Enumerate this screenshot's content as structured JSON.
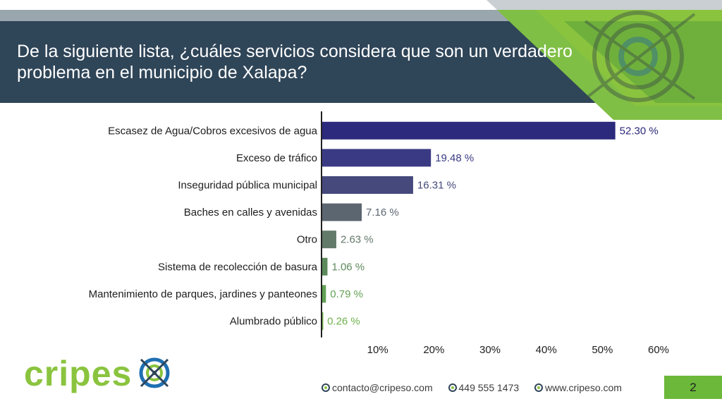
{
  "title": "De la siguiente lista, ¿cuáles servicios considera que son un verdadero problema en el municipio de Xalapa?",
  "colors": {
    "header": "#2f4558",
    "accent_green": "#6cb83a",
    "bar_palette": [
      "#2b2a7c",
      "#3a3a84",
      "#45497c",
      "#5c6670",
      "#63796a",
      "#5d8a5c",
      "#62a055",
      "#70b24e"
    ],
    "label_palette": [
      "#2b2a7c",
      "#3a3a84",
      "#45497c",
      "#5c6670",
      "#63796a",
      "#5d8a5c",
      "#62a055",
      "#70b24e"
    ]
  },
  "chart_data": {
    "type": "bar",
    "orientation": "horizontal",
    "categories": [
      "Escasez de Agua/Cobros excesivos de agua",
      "Exceso de tráfico",
      "Inseguridad pública municipal",
      "Baches en calles y avenidas",
      "Otro",
      "Sistema de recolección de basura",
      "Mantenimiento de parques, jardines y panteones",
      "Alumbrado público"
    ],
    "values": [
      52.3,
      19.48,
      16.31,
      7.16,
      2.63,
      1.06,
      0.79,
      0.26
    ],
    "value_labels": [
      "52.30 %",
      "19.48 %",
      "16.31 %",
      "7.16 %",
      "2.63 %",
      "1.06 %",
      "0.79 %",
      "0.26 %"
    ],
    "xlim": [
      0,
      60
    ],
    "ticks": [
      10,
      20,
      30,
      40,
      50,
      60
    ],
    "tick_labels": [
      "10%",
      "20%",
      "30%",
      "40%",
      "50%",
      "60%"
    ],
    "grid": false
  },
  "logo": {
    "part1": "cripes",
    "part2": "o"
  },
  "contacts": [
    {
      "icon": "globe-icon",
      "text": "contacto@cripeso.com"
    },
    {
      "icon": "globe-icon",
      "text": "449 555 1473"
    },
    {
      "icon": "globe-icon",
      "text": "www.cripeso.com"
    }
  ],
  "page_number": "2"
}
